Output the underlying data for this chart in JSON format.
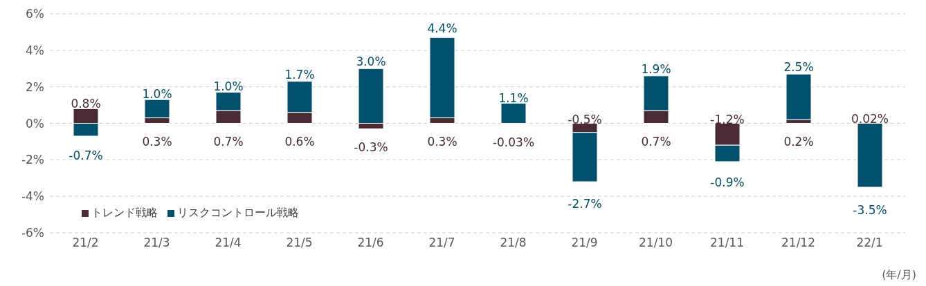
{
  "chart_data": {
    "type": "bar",
    "stacked": true,
    "categories": [
      "21/2",
      "21/3",
      "21/4",
      "21/5",
      "21/6",
      "21/7",
      "21/8",
      "21/9",
      "21/10",
      "21/11",
      "21/12",
      "22/1"
    ],
    "series": [
      {
        "name": "トレンド戦略",
        "color": "#4a2a33",
        "values": [
          0.8,
          0.3,
          0.7,
          0.6,
          -0.3,
          0.3,
          -0.03,
          -0.5,
          0.7,
          -1.2,
          0.2,
          0.02
        ],
        "value_labels": [
          "0.8%",
          "0.3%",
          "0.7%",
          "0.6%",
          "-0.3%",
          "0.3%",
          "-0.03%",
          "-0.5%",
          "0.7%",
          "-1.2%",
          "0.2%",
          "0.02%"
        ]
      },
      {
        "name": "リスクコントロール戦略",
        "color": "#00506e",
        "values": [
          -0.7,
          1.0,
          1.0,
          1.7,
          3.0,
          4.4,
          1.1,
          -2.7,
          1.9,
          -0.9,
          2.5,
          -3.5
        ],
        "value_labels": [
          "-0.7%",
          "1.0%",
          "1.0%",
          "1.7%",
          "3.0%",
          "4.4%",
          "1.1%",
          "-2.7%",
          "1.9%",
          "-0.9%",
          "2.5%",
          "-3.5%"
        ]
      }
    ],
    "ylim": [
      -6,
      6
    ],
    "yticks": [
      {
        "value": -6,
        "label": "-6%"
      },
      {
        "value": -4,
        "label": "-4%"
      },
      {
        "value": -2,
        "label": "-2%"
      },
      {
        "value": 0,
        "label": "0%"
      },
      {
        "value": 2,
        "label": "2%"
      },
      {
        "value": 4,
        "label": "4%"
      },
      {
        "value": 6,
        "label": "6%"
      }
    ],
    "grid": "y",
    "legend": "bottom left",
    "annotations": [
      "(年/月)"
    ]
  }
}
